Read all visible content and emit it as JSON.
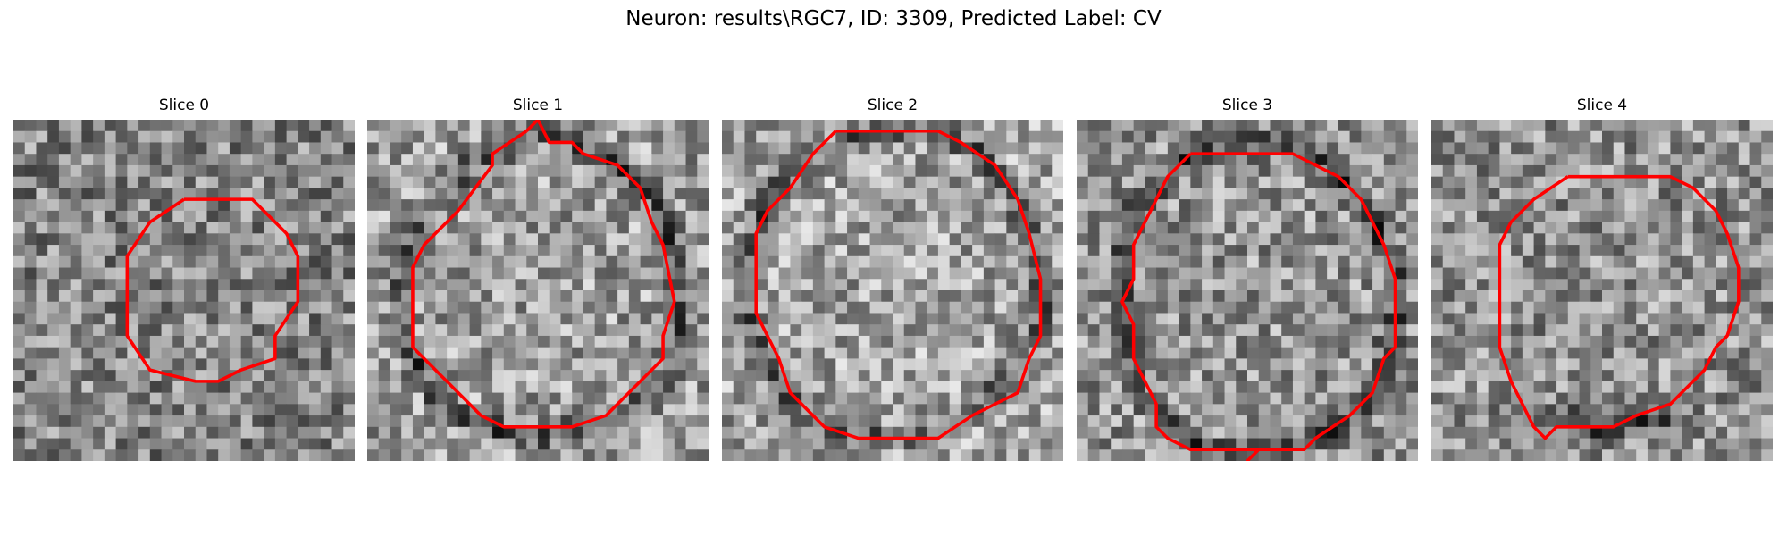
{
  "figure": {
    "title": "Neuron: results\\RGC7, ID: 3309, Predicted Label: CV"
  },
  "panels": [
    {
      "label": "Slice 0",
      "grid": 30,
      "seed": 11,
      "brightness": 0.52,
      "dark_outline": [],
      "contour_color": "#ff0000",
      "contour": [
        [
          15,
          7
        ],
        [
          21,
          7
        ],
        [
          24,
          10
        ],
        [
          25,
          12
        ],
        [
          25,
          16
        ],
        [
          23,
          19
        ],
        [
          23,
          21
        ],
        [
          20,
          22
        ],
        [
          18,
          23
        ],
        [
          16,
          23
        ],
        [
          12,
          22
        ],
        [
          10,
          19
        ],
        [
          10,
          12
        ],
        [
          12,
          9
        ]
      ]
    },
    {
      "label": "Slice 1",
      "grid": 30,
      "seed": 23,
      "brightness": 0.62,
      "dark_outline": [
        [
          15,
          1
        ],
        [
          18,
          2
        ],
        [
          22,
          4
        ],
        [
          25,
          7
        ],
        [
          27,
          11
        ],
        [
          28,
          16
        ],
        [
          27,
          21
        ],
        [
          24,
          25
        ],
        [
          20,
          27
        ],
        [
          15,
          28
        ],
        [
          10,
          27
        ],
        [
          6,
          24
        ],
        [
          3,
          19
        ],
        [
          3,
          13
        ],
        [
          5,
          8
        ],
        [
          9,
          4
        ]
      ],
      "contour_color": "#ff0000",
      "contour": [
        [
          14,
          1
        ],
        [
          15,
          0
        ],
        [
          16,
          2
        ],
        [
          18,
          2
        ],
        [
          19,
          3
        ],
        [
          22,
          4
        ],
        [
          24,
          6
        ],
        [
          25,
          9
        ],
        [
          26,
          11
        ],
        [
          27,
          16
        ],
        [
          26,
          19
        ],
        [
          26,
          21
        ],
        [
          24,
          23
        ],
        [
          21,
          26
        ],
        [
          18,
          27
        ],
        [
          12,
          27
        ],
        [
          10,
          26
        ],
        [
          8,
          24
        ],
        [
          6,
          22
        ],
        [
          4,
          20
        ],
        [
          4,
          13
        ],
        [
          5,
          11
        ],
        [
          8,
          8
        ],
        [
          11,
          4
        ],
        [
          11,
          3
        ]
      ]
    },
    {
      "label": "Slice 2",
      "grid": 30,
      "seed": 37,
      "brightness": 0.64,
      "dark_outline": [
        [
          15,
          1
        ],
        [
          19,
          1
        ],
        [
          23,
          3
        ],
        [
          26,
          7
        ],
        [
          28,
          12
        ],
        [
          28,
          17
        ],
        [
          26,
          22
        ],
        [
          22,
          26
        ],
        [
          18,
          28
        ],
        [
          12,
          28
        ],
        [
          7,
          26
        ],
        [
          4,
          22
        ],
        [
          2,
          17
        ],
        [
          2,
          12
        ],
        [
          4,
          7
        ],
        [
          8,
          3
        ]
      ],
      "contour_color": "#ff0000",
      "contour": [
        [
          10,
          1
        ],
        [
          19,
          1
        ],
        [
          21,
          2
        ],
        [
          24,
          4
        ],
        [
          26,
          7
        ],
        [
          27,
          10
        ],
        [
          28,
          14
        ],
        [
          28,
          19
        ],
        [
          27,
          21
        ],
        [
          26,
          24
        ],
        [
          24,
          25
        ],
        [
          22,
          26
        ],
        [
          19,
          28
        ],
        [
          12,
          28
        ],
        [
          9,
          27
        ],
        [
          8,
          26
        ],
        [
          6,
          24
        ],
        [
          5,
          21
        ],
        [
          3,
          17
        ],
        [
          3,
          10
        ],
        [
          4,
          8
        ],
        [
          6,
          6
        ],
        [
          8,
          3
        ]
      ]
    },
    {
      "label": "Slice 3",
      "grid": 30,
      "seed": 53,
      "brightness": 0.58,
      "dark_outline": [
        [
          17,
          2
        ],
        [
          22,
          4
        ],
        [
          26,
          8
        ],
        [
          28,
          14
        ],
        [
          28,
          19
        ],
        [
          26,
          24
        ],
        [
          22,
          28
        ],
        [
          17,
          29
        ],
        [
          12,
          29
        ],
        [
          8,
          27
        ],
        [
          5,
          23
        ],
        [
          4,
          17
        ],
        [
          4,
          11
        ],
        [
          6,
          7
        ],
        [
          10,
          3
        ]
      ],
      "contour_color": "#ff0000",
      "contour": [
        [
          10,
          3
        ],
        [
          19,
          3
        ],
        [
          21,
          4
        ],
        [
          23,
          5
        ],
        [
          25,
          7
        ],
        [
          26,
          9
        ],
        [
          27,
          11
        ],
        [
          28,
          14
        ],
        [
          28,
          20
        ],
        [
          27,
          21
        ],
        [
          26,
          24
        ],
        [
          24,
          26
        ],
        [
          21,
          28
        ],
        [
          20,
          29
        ],
        [
          18,
          29
        ],
        [
          16,
          29
        ],
        [
          15,
          30
        ],
        [
          16,
          29
        ],
        [
          12,
          29
        ],
        [
          10,
          29
        ],
        [
          8,
          28
        ],
        [
          7,
          27
        ],
        [
          7,
          25
        ],
        [
          6,
          23
        ],
        [
          5,
          21
        ],
        [
          5,
          18
        ],
        [
          4,
          16
        ],
        [
          5,
          14
        ],
        [
          5,
          11
        ],
        [
          6,
          9
        ],
        [
          7,
          7
        ],
        [
          8,
          5
        ]
      ]
    },
    {
      "label": "Slice 4",
      "grid": 30,
      "seed": 71,
      "brightness": 0.57,
      "dark_outline": [
        [
          11,
          26
        ],
        [
          13,
          27
        ],
        [
          17,
          27
        ],
        [
          20,
          26
        ]
      ],
      "contour_color": "#ff0000",
      "contour": [
        [
          12,
          5
        ],
        [
          21,
          5
        ],
        [
          23,
          6
        ],
        [
          24,
          7
        ],
        [
          25,
          8
        ],
        [
          26,
          10
        ],
        [
          27,
          13
        ],
        [
          27,
          16
        ],
        [
          26,
          19
        ],
        [
          25,
          20
        ],
        [
          24,
          22
        ],
        [
          23,
          23
        ],
        [
          22,
          24
        ],
        [
          21,
          25
        ],
        [
          18,
          26
        ],
        [
          16,
          27
        ],
        [
          11,
          27
        ],
        [
          10,
          28
        ],
        [
          9,
          27
        ],
        [
          8,
          25
        ],
        [
          7,
          23
        ],
        [
          6,
          20
        ],
        [
          6,
          11
        ],
        [
          7,
          9
        ],
        [
          9,
          7
        ]
      ]
    }
  ]
}
